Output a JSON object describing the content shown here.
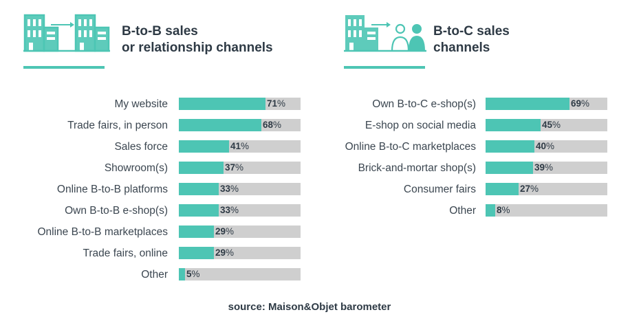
{
  "colors": {
    "accent": "#4dc5b4",
    "track": "#cfcfcf",
    "text": "#2e3a45"
  },
  "panels": {
    "b2b": {
      "title_line1": "B-to-B sales",
      "title_line2": "or relationship channels",
      "icon": "building-to-building-icon"
    },
    "b2c": {
      "title_line1": "B-to-C sales",
      "title_line2": "channels",
      "icon": "building-to-people-icon"
    }
  },
  "source": "source: Maison&Objet barometer",
  "chart_data": [
    {
      "type": "bar",
      "orientation": "horizontal",
      "title": "B-to-B sales or relationship channels",
      "categories": [
        "My website",
        "Trade fairs, in person",
        "Sales force",
        "Showroom(s)",
        "Online B-to-B platforms",
        "Own B-to-B e-shop(s)",
        "Online B-to-B marketplaces",
        "Trade fairs, online",
        "Other"
      ],
      "values": [
        71,
        68,
        41,
        37,
        33,
        33,
        29,
        29,
        5
      ],
      "unit": "%",
      "xlim": [
        0,
        100
      ]
    },
    {
      "type": "bar",
      "orientation": "horizontal",
      "title": "B-to-C sales channels",
      "categories": [
        "Own B-to-C e-shop(s)",
        "E-shop on social media",
        "Online B-to-C marketplaces",
        "Brick-and-mortar shop(s)",
        "Consumer fairs",
        "Other"
      ],
      "values": [
        69,
        45,
        40,
        39,
        27,
        8
      ],
      "unit": "%",
      "xlim": [
        0,
        100
      ]
    }
  ]
}
